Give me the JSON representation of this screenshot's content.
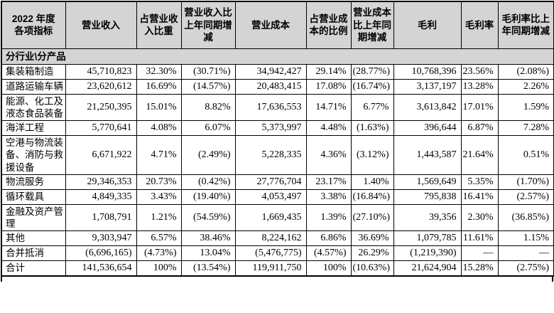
{
  "colors": {
    "header_bg": "#d4d4d4",
    "border": "#000000",
    "text": "#000000"
  },
  "table": {
    "columns": [
      "2022 年度\n各项指标",
      "营业收入",
      "占营业收入比重",
      "营业收入比上年同期增减",
      "营业成本",
      "占营业成本的比例",
      "营业成本比上年同期增减",
      "毛利",
      "毛利率",
      "毛利率比上年同期增减"
    ],
    "section_label": "分行业\\分产品",
    "rows": [
      {
        "label": "集装箱制造",
        "values": [
          "45,710,823",
          "32.30%",
          "(30.71%)",
          "34,942,427",
          "29.14%",
          "(28.77%)",
          "10,768,396",
          "23.56%",
          "(2.08%)"
        ]
      },
      {
        "label": "道路运输车辆",
        "values": [
          "23,620,612",
          "16.69%",
          "(14.57%)",
          "20,483,415",
          "17.08%",
          "(16.74%)",
          "3,137,197",
          "13.28%",
          "2.26%"
        ]
      },
      {
        "label": "能源、化工及液态食品装备",
        "values": [
          "21,250,395",
          "15.01%",
          "8.82%",
          "17,636,553",
          "14.71%",
          "6.77%",
          "3,613,842",
          "17.01%",
          "1.59%"
        ]
      },
      {
        "label": "海洋工程",
        "values": [
          "5,770,641",
          "4.08%",
          "6.07%",
          "5,373,997",
          "4.48%",
          "(1.63%)",
          "396,644",
          "6.87%",
          "7.28%"
        ]
      },
      {
        "label": "空港与物流装备、消防与救援设备",
        "values": [
          "6,671,922",
          "4.71%",
          "(2.49%)",
          "5,228,335",
          "4.36%",
          "(3.12%)",
          "1,443,587",
          "21.64%",
          "0.51%"
        ]
      },
      {
        "label": "物流服务",
        "values": [
          "29,346,353",
          "20.73%",
          "(0.42%)",
          "27,776,704",
          "23.17%",
          "1.40%",
          "1,569,649",
          "5.35%",
          "(1.70%)"
        ]
      },
      {
        "label": "循环载具",
        "values": [
          "4,849,335",
          "3.43%",
          "(19.40%)",
          "4,053,497",
          "3.38%",
          "(16.84%)",
          "795,838",
          "16.41%",
          "(2.57%)"
        ]
      },
      {
        "label": "金融及资产管理",
        "values": [
          "1,708,791",
          "1.21%",
          "(54.59%)",
          "1,669,435",
          "1.39%",
          "(27.10%)",
          "39,356",
          "2.30%",
          "(36.85%)"
        ]
      },
      {
        "label": "其他",
        "values": [
          "9,303,947",
          "6.57%",
          "38.46%",
          "8,224,162",
          "6.86%",
          "36.69%",
          "1,079,785",
          "11.61%",
          "1.15%"
        ]
      },
      {
        "label": "合并抵消",
        "values": [
          "(6,696,165)",
          "(4.73%)",
          "13.04%",
          "(5,476,775)",
          "(4.57%)",
          "26.29%",
          "(1,219,390)",
          "—",
          "—"
        ]
      },
      {
        "label": "合计",
        "values": [
          "141,536,654",
          "100%",
          "(13.54%)",
          "119,911,750",
          "100%",
          "(10.63%)",
          "21,624,904",
          "15.28%",
          "(2.75%)"
        ]
      }
    ]
  }
}
